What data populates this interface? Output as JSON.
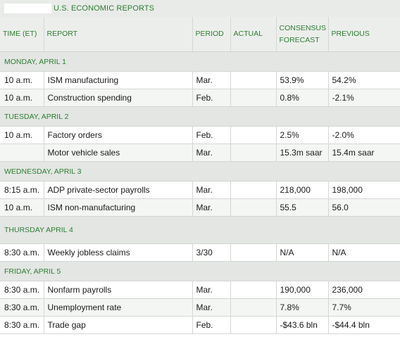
{
  "title": "U.S. ECONOMIC REPORTS",
  "headers": {
    "time": "TIME (ET)",
    "report": "REPORT",
    "period": "PERIOD",
    "actual": "ACTUAL",
    "consensus_line1": "CONSENSUS",
    "consensus_line2": "FORECAST",
    "previous": "PREVIOUS"
  },
  "days": [
    {
      "label": "MONDAY, APRIL 1",
      "rows": [
        {
          "time": "10 a.m.",
          "report": "ISM manufacturing",
          "period": "Mar.",
          "actual": "",
          "consensus": "53.9%",
          "previous": "54.2%"
        },
        {
          "time": "10 a.m.",
          "report": "Construction spending",
          "period": "Feb.",
          "actual": "",
          "consensus": "0.8%",
          "previous": "-2.1%"
        }
      ]
    },
    {
      "label": "TUESDAY, APRIL 2",
      "rows": [
        {
          "time": "10 a.m.",
          "report": "Factory orders",
          "period": "Feb.",
          "actual": "",
          "consensus": "2.5%",
          "previous": "-2.0%"
        },
        {
          "time": "",
          "report": "Motor vehicle sales",
          "period": "Mar.",
          "actual": "",
          "consensus": "15.3m saar",
          "previous": "15.4m saar"
        }
      ]
    },
    {
      "label": "WEDNESDAY, APRIL 3",
      "rows": [
        {
          "time": "8:15 a.m.",
          "report": "ADP private-sector payrolls",
          "period": "Mar.",
          "actual": "",
          "consensus": "218,000",
          "previous": "198,000"
        },
        {
          "time": "10 a.m.",
          "report": "ISM non-manufacturing",
          "period": "Mar.",
          "actual": "",
          "consensus": "55.5",
          "previous": "56.0"
        }
      ]
    },
    {
      "label": "THURSDAY APRIL 4",
      "rows": [
        {
          "time": "8:30 a.m.",
          "report": "Weekly jobless claims",
          "period": "3/30",
          "actual": "",
          "consensus": "N/A",
          "previous": "N/A"
        }
      ]
    },
    {
      "label": "FRIDAY, APRIL 5",
      "rows": [
        {
          "time": "8:30 a.m.",
          "report": "Nonfarm payrolls",
          "period": "Mar.",
          "actual": "",
          "consensus": "190,000",
          "previous": "236,000"
        },
        {
          "time": "8:30 a.m.",
          "report": "Unemployment rate",
          "period": "Mar.",
          "actual": "",
          "consensus": "7.8%",
          "previous": "7.7%"
        },
        {
          "time": "8:30 a.m.",
          "report": "Trade gap",
          "period": "Feb.",
          "actual": "",
          "consensus": "-$43.6 bln",
          "previous": "-$44.4 bln"
        }
      ]
    }
  ]
}
